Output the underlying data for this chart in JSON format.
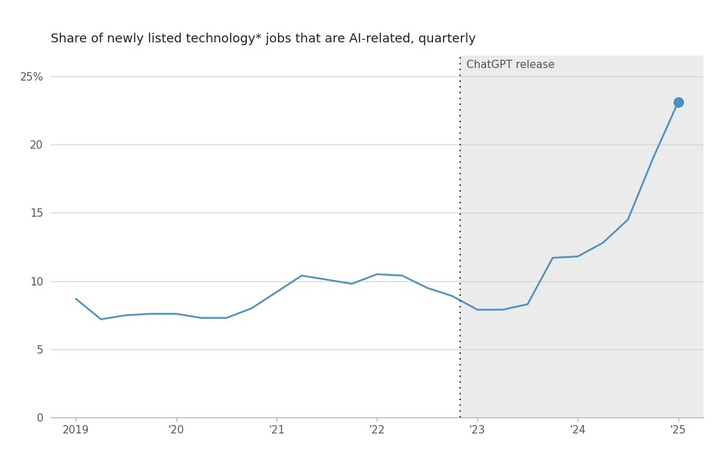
{
  "title": "Share of newly listed technology* jobs that are AI-related, quarterly",
  "line_color": "#4A90C4",
  "background_color": "#ffffff",
  "shaded_region_color": "#ebebeb",
  "chatgpt_line_x": 2022.83,
  "chatgpt_label": "ChatGPT release",
  "x_data": [
    2019.0,
    2019.25,
    2019.5,
    2019.75,
    2020.0,
    2020.25,
    2020.5,
    2020.75,
    2021.0,
    2021.25,
    2021.5,
    2021.75,
    2022.0,
    2022.25,
    2022.5,
    2022.75,
    2023.0,
    2023.25,
    2023.5,
    2023.75,
    2024.0,
    2024.25,
    2024.5,
    2024.75,
    2025.0
  ],
  "y_data": [
    8.7,
    7.2,
    7.5,
    7.6,
    7.6,
    7.3,
    7.3,
    8.0,
    9.2,
    10.4,
    10.1,
    9.8,
    10.5,
    10.4,
    9.5,
    8.9,
    7.9,
    7.9,
    8.3,
    11.7,
    11.8,
    12.8,
    14.5,
    19.0,
    23.1
  ],
  "yticks": [
    0,
    5,
    10,
    15,
    20,
    25
  ],
  "ytick_labels": [
    "0",
    "5",
    "10",
    "15",
    "20",
    "25%"
  ],
  "xtick_positions": [
    2019,
    2020,
    2021,
    2022,
    2023,
    2024,
    2025
  ],
  "xtick_labels": [
    "2019",
    "'20",
    "'21",
    "'22",
    "'23",
    "'24",
    "'25"
  ],
  "ylim": [
    0,
    26.5
  ],
  "xlim": [
    2018.75,
    2025.25
  ],
  "endpoint_marker_size": 9,
  "line_width": 1.8,
  "chatgpt_label_fontsize": 11,
  "title_fontsize": 13,
  "tick_label_fontsize": 11,
  "grid_color": "#d0d0d0",
  "tick_color": "#888888",
  "spine_color": "#aaaaaa"
}
